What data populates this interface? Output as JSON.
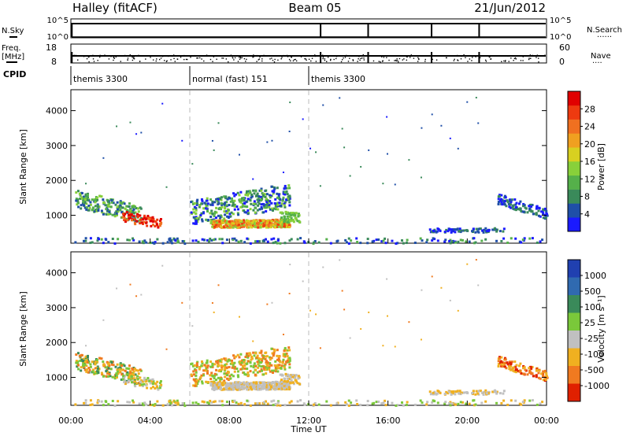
{
  "header": {
    "station": "Halley (fitACF)",
    "beam": "Beam 05",
    "date": "21/Jun/2012"
  },
  "status_panels": {
    "nsky_label": "N.Sky",
    "nsky_ticks": [
      "10^5",
      "10^0"
    ],
    "nsearch_label": "N.Search",
    "nsearch_ticks": [
      "10^5",
      "10^0"
    ],
    "freq_label_line1": "Freq.",
    "freq_label_line2": "[MHz]",
    "freq_ticks": [
      "18",
      "8"
    ],
    "nave_label": "Nave",
    "nave_ticks": [
      "60",
      "0"
    ],
    "cpid_label": "CPID",
    "cpid_segments": [
      {
        "label": "themis 3300",
        "start_hour": 0,
        "end_hour": 6
      },
      {
        "label": "normal (fast) 151",
        "start_hour": 6,
        "end_hour": 12
      },
      {
        "label": "themis 3300",
        "start_hour": 12,
        "end_hour": 24
      }
    ],
    "dropout_hours": [
      12.6,
      15.0,
      18.2,
      20.6
    ]
  },
  "chart_data": [
    {
      "type": "heatmap",
      "name": "Power",
      "ylabel": "Slant Range [km]",
      "yticks": [
        1000,
        2000,
        3000,
        4000
      ],
      "ylim": [
        200,
        4600
      ],
      "xlim": [
        0,
        24
      ],
      "colorbar_label": "Power [dB]",
      "colorbar_ticks": [
        "4",
        "8",
        "12",
        "16",
        "20",
        "24",
        "28"
      ],
      "colorbar_colors": [
        "#1a1aff",
        "#1f4fa8",
        "#3a8a5a",
        "#55b04a",
        "#88d03a",
        "#d8d020",
        "#f0a020",
        "#f07020",
        "#ee3a10",
        "#e00000"
      ]
    },
    {
      "type": "heatmap",
      "name": "Velocity",
      "ylabel": "Slant Range [km]",
      "yticks": [
        1000,
        2000,
        3000,
        4000
      ],
      "ylim": [
        200,
        4600
      ],
      "xlim": [
        0,
        24
      ],
      "xlabel": "Time UT",
      "xticks": [
        "00:00",
        "04:00",
        "08:00",
        "12:00",
        "16:00",
        "20:00",
        "00:00"
      ],
      "colorbar_label": "Velocity [m s⁻¹]",
      "colorbar_ticks": [
        "1000",
        "500",
        "100",
        "25",
        "-25",
        "-100",
        "-500",
        "-1000"
      ],
      "colorbar_colors": [
        "#2040b0",
        "#306ab0",
        "#3a8a5a",
        "#7ac83a",
        "#c0c0c0",
        "#f0b020",
        "#f07a20",
        "#e02000"
      ]
    }
  ]
}
